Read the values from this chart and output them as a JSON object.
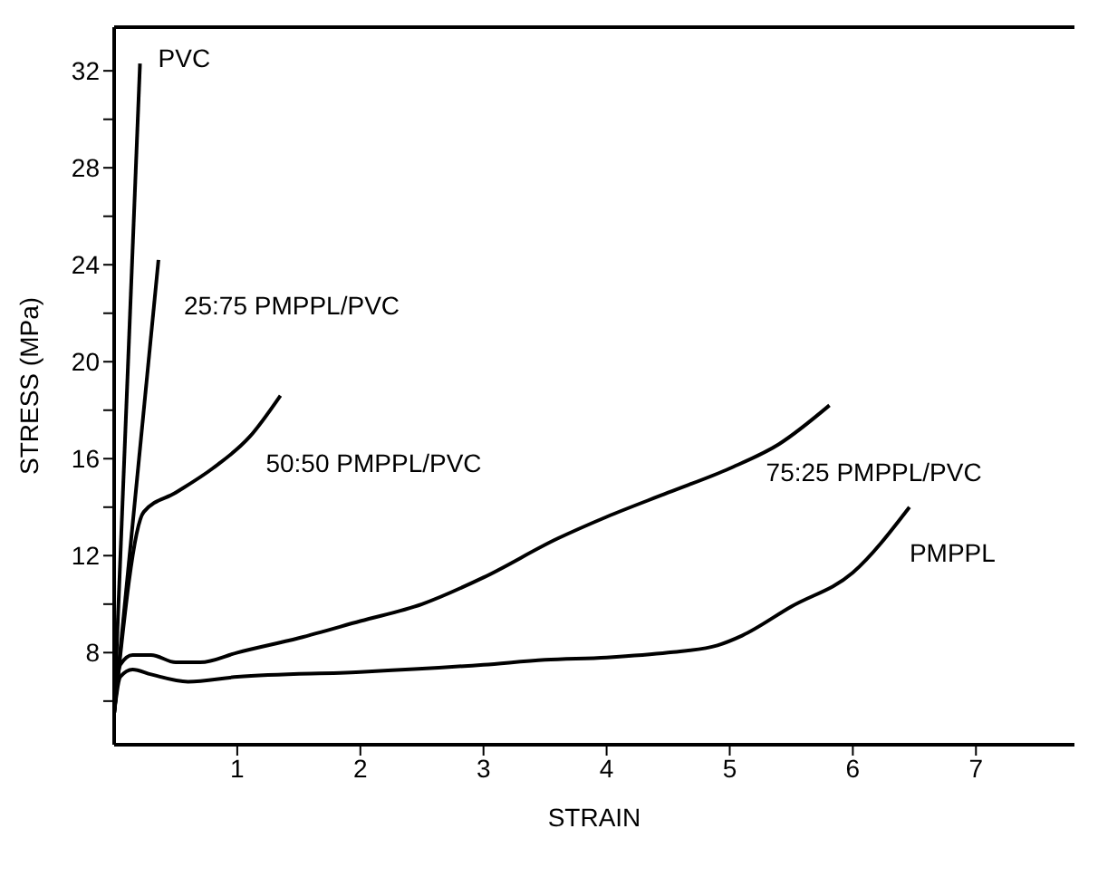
{
  "chart_data": {
    "type": "line",
    "xlabel": "STRAIN",
    "ylabel": "STRESS (MPa)",
    "xlim": [
      0,
      7.8
    ],
    "xticks": [
      1,
      2,
      3,
      4,
      5,
      6,
      7
    ],
    "ylim": [
      4.2,
      33.8
    ],
    "yticks": [
      {
        "value": 6,
        "label": null
      },
      8,
      {
        "value": 10,
        "label": null
      },
      12,
      {
        "value": 14,
        "label": null
      },
      16,
      {
        "value": 18,
        "label": null
      },
      20,
      {
        "value": 22,
        "label": null
      },
      24,
      {
        "value": 26,
        "label": null
      },
      28,
      {
        "value": 30,
        "label": null
      },
      32
    ],
    "grid": false,
    "legend": false,
    "marker": "none",
    "line_style": "solid",
    "series": [
      {
        "name": "PVC",
        "color": "#000000",
        "x": [
          0,
          0.21
        ],
        "values": [
          5.5,
          32.3
        ]
      },
      {
        "name": "25:75 PMPPL/PVC",
        "color": "#000000",
        "x": [
          0,
          0.36
        ],
        "values": [
          5.5,
          24.2
        ]
      },
      {
        "name": "50:50 PMPPL/PVC",
        "color": "#000000",
        "x": [
          0,
          0.24,
          0.5,
          0.8,
          1.1,
          1.35
        ],
        "values": [
          5.5,
          13.8,
          14.6,
          15.6,
          16.9,
          18.6
        ]
      },
      {
        "name": "75:25 PMPPL/PVC",
        "color": "#000000",
        "x": [
          0,
          0.05,
          0.15,
          0.3,
          0.5,
          0.7,
          1,
          1.5,
          2,
          2.5,
          3,
          3.6,
          4,
          4.5,
          5,
          5.4,
          5.81
        ],
        "values": [
          5.5,
          7.5,
          7.9,
          7.9,
          7.6,
          7.6,
          8,
          8.6,
          9.3,
          10,
          11.1,
          12.7,
          13.6,
          14.6,
          15.6,
          16.6,
          18.2
        ]
      },
      {
        "name": "PMPPL",
        "color": "#000000",
        "x": [
          0,
          0.05,
          0.15,
          0.3,
          0.6,
          1,
          2,
          3,
          3.5,
          4,
          4.5,
          4.9,
          5.1,
          5.5,
          6,
          6.46
        ],
        "values": [
          5.5,
          7,
          7.3,
          7.1,
          6.8,
          7.0,
          7.2,
          7.5,
          7.7,
          7.8,
          8.0,
          8.3,
          8.7,
          9.9,
          11.3,
          14
        ]
      }
    ]
  }
}
